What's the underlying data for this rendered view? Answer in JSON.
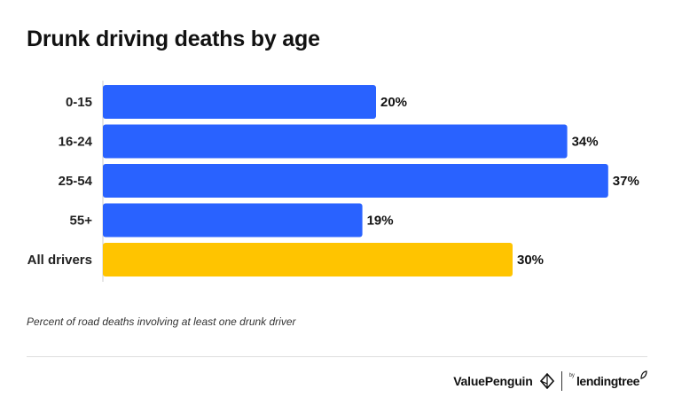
{
  "chart_data": {
    "type": "bar",
    "orientation": "horizontal",
    "title": "Drunk driving deaths by age",
    "categories": [
      "0-15",
      "16-24",
      "25-54",
      "55+",
      "All drivers"
    ],
    "values": [
      20,
      34,
      37,
      19,
      30
    ],
    "value_labels": [
      "20%",
      "34%",
      "37%",
      "19%",
      "30%"
    ],
    "unit": "%",
    "xlim": [
      0,
      40
    ],
    "grid": false,
    "legend": "none",
    "note": "Percent of road deaths involving at least one drunk driver",
    "colors": {
      "bar": "#2962ff",
      "highlight_bar": "#ffc400",
      "highlight_category": "All drivers",
      "axis": "#cccccc"
    }
  },
  "footer": {
    "brand": "ValuePenguin",
    "by": "by",
    "partner": "lendingtree",
    "icons": [
      "valuepenguin-logo-icon",
      "lendingtree-leaf-icon"
    ]
  }
}
